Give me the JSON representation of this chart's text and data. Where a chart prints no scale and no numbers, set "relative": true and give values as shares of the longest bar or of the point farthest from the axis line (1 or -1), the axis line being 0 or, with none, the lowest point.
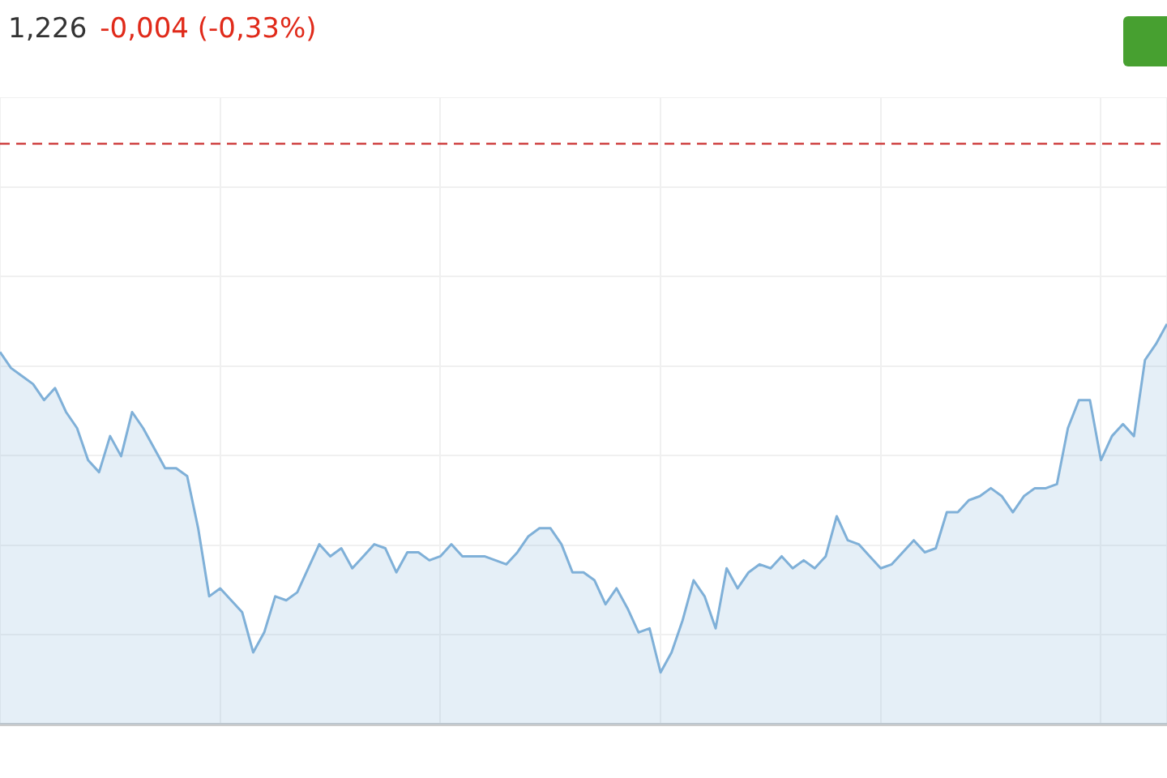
{
  "chart_data": {
    "type": "area",
    "title": "1,226",
    "subtitle": "-0,004 (-0,33%)",
    "relative": true,
    "grid": true,
    "legend": false,
    "marker": "none",
    "categories": [
      null,
      null,
      null,
      null,
      null,
      null,
      null,
      null,
      null,
      null,
      null,
      null,
      null,
      null,
      null,
      null,
      null,
      null,
      null,
      null,
      null,
      null,
      null,
      null,
      null,
      null,
      null,
      null,
      null,
      null,
      null,
      null,
      null,
      null,
      null,
      null,
      null,
      null,
      null,
      null,
      null,
      null,
      null,
      null,
      null,
      null,
      null,
      null,
      null,
      null,
      null,
      null,
      null,
      null,
      null,
      null,
      null,
      null,
      null,
      null,
      null,
      null,
      null,
      null,
      null,
      null,
      null,
      null,
      null,
      null,
      null,
      null,
      null,
      null,
      null,
      null,
      null,
      null,
      null,
      null,
      null,
      null,
      null,
      null,
      null,
      null,
      null,
      null,
      null,
      null,
      null,
      null,
      null,
      null,
      null,
      null,
      null,
      null,
      null,
      null,
      null,
      null,
      null,
      null,
      null,
      null,
      null
    ],
    "series": [
      {
        "color": "#7fb0d8",
        "values": [
          0.93,
          0.89,
          0.87,
          0.85,
          0.81,
          0.84,
          0.78,
          0.74,
          0.66,
          0.63,
          0.72,
          0.67,
          0.78,
          0.74,
          0.69,
          0.64,
          0.64,
          0.62,
          0.49,
          0.32,
          0.34,
          0.31,
          0.28,
          0.18,
          0.23,
          0.32,
          0.31,
          0.33,
          0.39,
          0.45,
          0.42,
          0.44,
          0.39,
          0.42,
          0.45,
          0.44,
          0.38,
          0.43,
          0.43,
          0.41,
          0.42,
          0.45,
          0.42,
          0.42,
          0.42,
          0.41,
          0.4,
          0.43,
          0.47,
          0.49,
          0.49,
          0.45,
          0.38,
          0.38,
          0.36,
          0.3,
          0.34,
          0.29,
          0.23,
          0.24,
          0.13,
          0.18,
          0.26,
          0.36,
          0.32,
          0.24,
          0.39,
          0.34,
          0.38,
          0.4,
          0.39,
          0.42,
          0.39,
          0.41,
          0.39,
          0.42,
          0.52,
          0.46,
          0.45,
          0.42,
          0.39,
          0.4,
          0.43,
          0.46,
          0.43,
          0.44,
          0.53,
          0.53,
          0.56,
          0.57,
          0.59,
          0.57,
          0.53,
          0.57,
          0.59,
          0.59,
          0.6,
          0.74,
          0.81,
          0.81,
          0.66,
          0.72,
          0.75,
          0.72,
          0.91,
          0.95,
          1
        ]
      }
    ],
    "ref_lines": [
      {
        "axis": "y",
        "value": 1.45,
        "color": "#cc3333",
        "line_style": "dashed"
      }
    ]
  }
}
